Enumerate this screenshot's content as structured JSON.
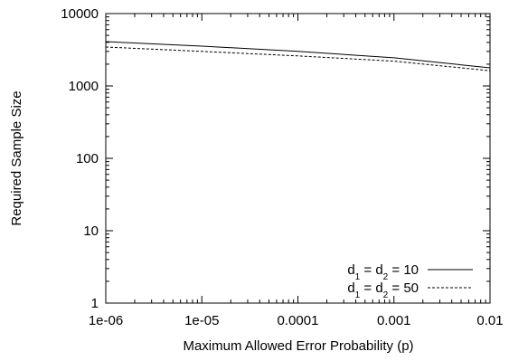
{
  "chart_data": {
    "type": "line",
    "xlabel": "Maximum Allowed Error Probability (p)",
    "ylabel": "Required Sample Size",
    "x_scale": "log",
    "y_scale": "log",
    "xlim": [
      1e-06,
      0.01
    ],
    "ylim": [
      1,
      10000
    ],
    "x_ticks": [
      {
        "value": 1e-06,
        "label": "1e-06"
      },
      {
        "value": 1e-05,
        "label": "1e-05"
      },
      {
        "value": 0.0001,
        "label": "0.0001"
      },
      {
        "value": 0.001,
        "label": "0.001"
      },
      {
        "value": 0.01,
        "label": "0.01"
      }
    ],
    "y_ticks": [
      {
        "value": 1,
        "label": "1"
      },
      {
        "value": 10,
        "label": "10"
      },
      {
        "value": 100,
        "label": "100"
      },
      {
        "value": 1000,
        "label": "1000"
      },
      {
        "value": 10000,
        "label": "10000"
      }
    ],
    "grid": false,
    "legend_position": "bottom-right",
    "series": [
      {
        "legend_label": "d1 = d2 = 10",
        "legend_parts": {
          "base": "d",
          "sub1": "1",
          "mid": " = d",
          "sub2": "2",
          "tail": " = 10"
        },
        "line_style": "solid",
        "color": "#000000",
        "x": [
          1e-06,
          1e-05,
          0.0001,
          0.001,
          0.01
        ],
        "y": [
          4100,
          3550,
          3000,
          2450,
          1780
        ]
      },
      {
        "legend_label": "d1 = d2 = 50",
        "legend_parts": {
          "base": "d",
          "sub1": "1",
          "mid": " = d",
          "sub2": "2",
          "tail": " = 50"
        },
        "line_style": "dashed",
        "color": "#000000",
        "x": [
          1e-06,
          1e-05,
          0.0001,
          0.001,
          0.01
        ],
        "y": [
          3450,
          3000,
          2600,
          2200,
          1620
        ]
      }
    ]
  }
}
